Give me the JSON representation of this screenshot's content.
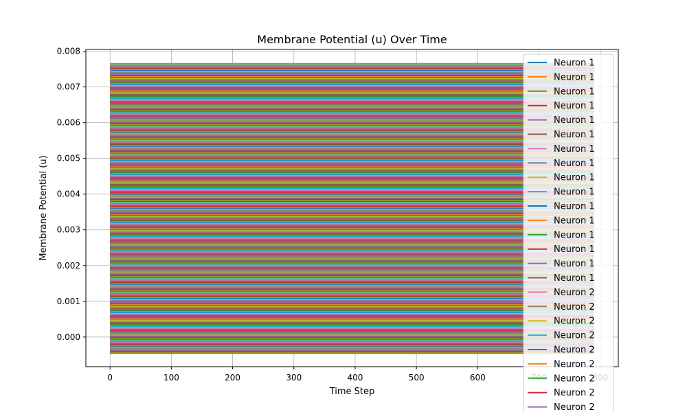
{
  "chart_data": {
    "type": "line",
    "title": "Membrane Potential (u) Over Time",
    "xlabel": "Time Step",
    "ylabel": "Membrane Potential (u)",
    "xlim": [
      -39.5,
      829.5
    ],
    "ylim": [
      -0.00083,
      0.00805
    ],
    "x_ticks": [
      0,
      100,
      200,
      300,
      400,
      500,
      600,
      700,
      800
    ],
    "x_tick_labels": [
      "0",
      "100",
      "200",
      "300",
      "400",
      "500",
      "600",
      "700",
      "800"
    ],
    "y_ticks": [
      0.0,
      0.001,
      0.002,
      0.003,
      0.004,
      0.005,
      0.006,
      0.007,
      0.008
    ],
    "y_tick_labels": [
      "0.000",
      "0.001",
      "0.002",
      "0.003",
      "0.004",
      "0.005",
      "0.006",
      "0.007",
      "0.008"
    ],
    "x_range": [
      0,
      790
    ],
    "grid": true,
    "legend_position": "upper-right",
    "band_min": -0.00045,
    "band_max": 0.00765,
    "line_count": 420,
    "palette": [
      "#1f77b4",
      "#ff7f0e",
      "#2ca02c",
      "#d62728",
      "#9467bd",
      "#8c564b",
      "#e377c2",
      "#7f7f7f",
      "#bcbd22",
      "#17becf"
    ],
    "legend_entries": [
      {
        "label": "Neuron 1",
        "color": "#1f77b4"
      },
      {
        "label": "Neuron 1",
        "color": "#ff7f0e"
      },
      {
        "label": "Neuron 1",
        "color": "#2ca02c"
      },
      {
        "label": "Neuron 1",
        "color": "#d62728"
      },
      {
        "label": "Neuron 1",
        "color": "#9467bd"
      },
      {
        "label": "Neuron 1",
        "color": "#8c564b"
      },
      {
        "label": "Neuron 1",
        "color": "#e377c2"
      },
      {
        "label": "Neuron 1",
        "color": "#7f7f7f"
      },
      {
        "label": "Neuron 1",
        "color": "#bcbd22"
      },
      {
        "label": "Neuron 1",
        "color": "#17becf"
      },
      {
        "label": "Neuron 1",
        "color": "#1f77b4"
      },
      {
        "label": "Neuron 1",
        "color": "#ff7f0e"
      },
      {
        "label": "Neuron 1",
        "color": "#2ca02c"
      },
      {
        "label": "Neuron 1",
        "color": "#d62728"
      },
      {
        "label": "Neuron 1",
        "color": "#9467bd"
      },
      {
        "label": "Neuron 1",
        "color": "#8c564b"
      },
      {
        "label": "Neuron 2",
        "color": "#e377c2"
      },
      {
        "label": "Neuron 2",
        "color": "#7f7f7f"
      },
      {
        "label": "Neuron 2",
        "color": "#bcbd22"
      },
      {
        "label": "Neuron 2",
        "color": "#17becf"
      },
      {
        "label": "Neuron 2",
        "color": "#1f77b4"
      },
      {
        "label": "Neuron 2",
        "color": "#ff7f0e"
      },
      {
        "label": "Neuron 2",
        "color": "#2ca02c"
      },
      {
        "label": "Neuron 2",
        "color": "#d62728"
      },
      {
        "label": "Neuron 2",
        "color": "#9467bd"
      }
    ]
  }
}
